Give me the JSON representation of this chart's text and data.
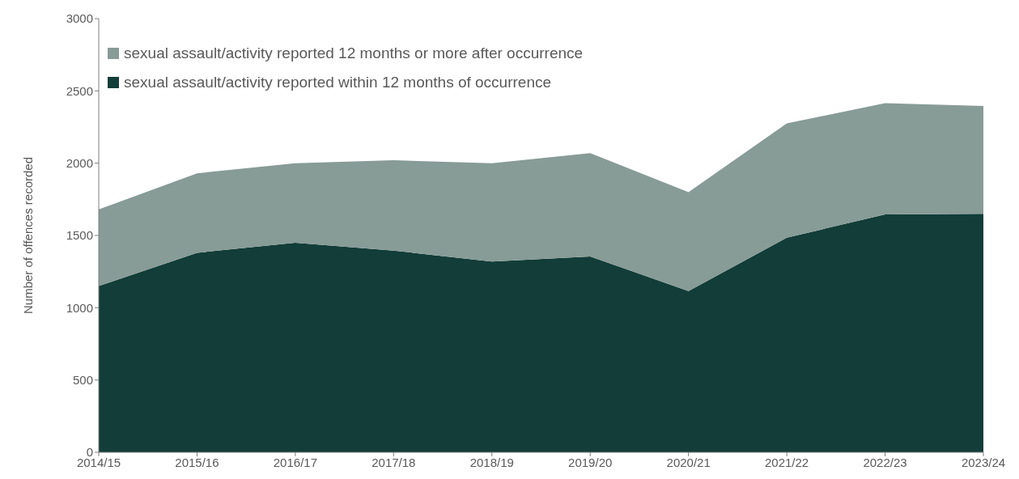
{
  "chart_data": {
    "type": "area",
    "stacked": true,
    "ylabel": "Number of offences recorded",
    "categories": [
      "2014/15",
      "2015/16",
      "2016/17",
      "2017/18",
      "2018/19",
      "2019/20",
      "2020/21",
      "2021/22",
      "2022/23",
      "2023/24"
    ],
    "series": [
      {
        "name": "sexual assault/activity reported within 12 months of occurrence",
        "color": "#123d38",
        "values": [
          1150,
          1380,
          1450,
          1395,
          1320,
          1355,
          1115,
          1485,
          1645,
          1650
        ]
      },
      {
        "name": "sexual assault/activity reported 12 months or more after occurrence",
        "color": "#879b97",
        "values": [
          530,
          550,
          550,
          625,
          680,
          715,
          685,
          790,
          770,
          745
        ]
      }
    ],
    "ylim": [
      0,
      3000
    ],
    "yticks": [
      0,
      500,
      1000,
      1500,
      2000,
      2500,
      3000
    ],
    "grid": false,
    "legend": "top left"
  }
}
